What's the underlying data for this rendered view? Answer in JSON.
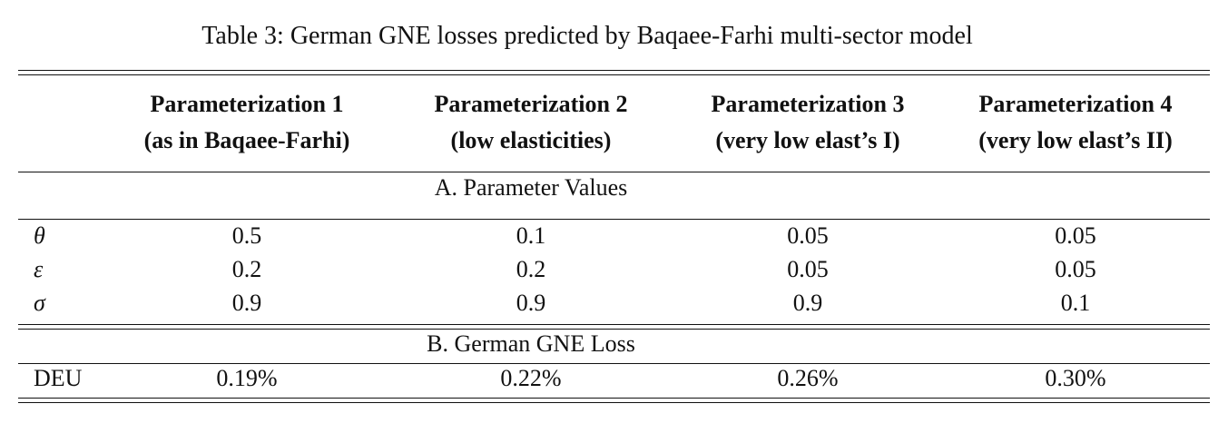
{
  "caption": "Table 3:  German GNE losses predicted by Baqaee-Farhi multi-sector model",
  "header": [
    [
      "Parameterization 1",
      "(as in Baqaee-Farhi)"
    ],
    [
      "Parameterization 2",
      "(low elasticities)"
    ],
    [
      "Parameterization 3",
      "(very low elast’s I)"
    ],
    [
      "Parameterization 4",
      "(very low elast’s II)"
    ]
  ],
  "sections": [
    {
      "title": "A. Parameter Values",
      "rows": [
        [
          "θ",
          "0.5",
          "0.1",
          "0.05",
          "0.05"
        ],
        [
          "ε",
          "0.2",
          "0.2",
          "0.05",
          "0.05"
        ],
        [
          "σ",
          "0.9",
          "0.9",
          "0.9",
          "0.1"
        ]
      ]
    },
    {
      "title": "B. German GNE Loss",
      "rows": [
        [
          "DEU",
          "0.19%",
          "0.22%",
          "0.26%",
          "0.30%"
        ]
      ]
    }
  ]
}
